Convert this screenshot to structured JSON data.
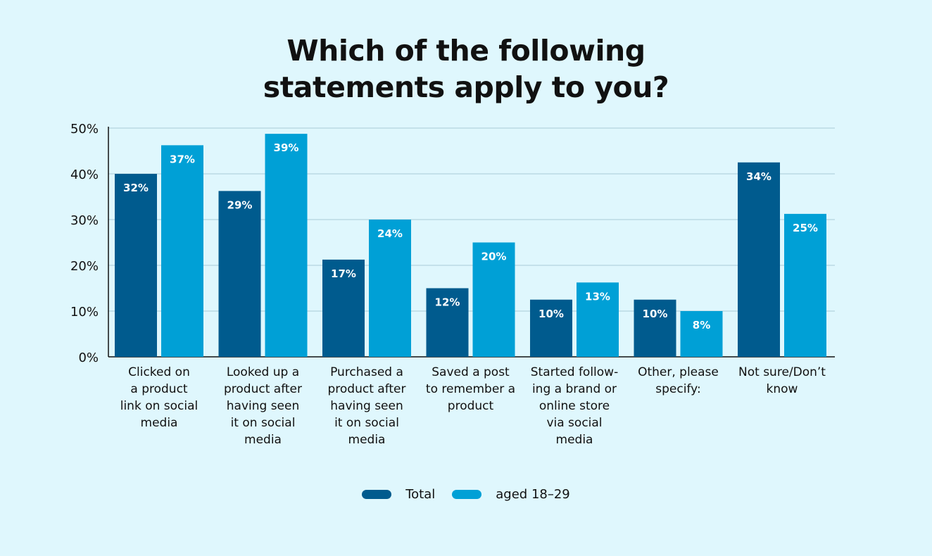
{
  "chart_data": {
    "type": "bar",
    "title": "Which of the following statements apply to you?",
    "categories": [
      [
        "Clicked on",
        "a product",
        "link on social",
        "media"
      ],
      [
        "Looked up a",
        "product after",
        "having seen",
        "it on social",
        "media"
      ],
      [
        "Purchased a",
        "product after",
        "having seen",
        "it on social",
        "media"
      ],
      [
        "Saved a post",
        "to remember a",
        "product"
      ],
      [
        "Started follow-",
        "ing a brand or",
        "online store",
        "via social",
        "media"
      ],
      [
        "Other, please",
        "specify:"
      ],
      [
        "Not sure/Don’t",
        "know"
      ]
    ],
    "series": [
      {
        "name": "Total",
        "color": "#005b8e",
        "values": [
          32,
          29,
          17,
          12,
          10,
          10,
          34
        ],
        "labels": [
          "32%",
          "29%",
          "17%",
          "12%",
          "10%",
          "10%",
          "34%"
        ]
      },
      {
        "name": "aged 18–29",
        "color": "#00a0d6",
        "values": [
          37,
          39,
          24,
          20,
          13,
          8,
          25
        ],
        "labels": [
          "37%",
          "39%",
          "24%",
          "20%",
          "13%",
          "8%",
          "25%"
        ]
      }
    ],
    "yticks": [
      "0%",
      "10%",
      "20%",
      "30%",
      "40%",
      "50%"
    ],
    "grid": true,
    "legend": "bottom"
  }
}
